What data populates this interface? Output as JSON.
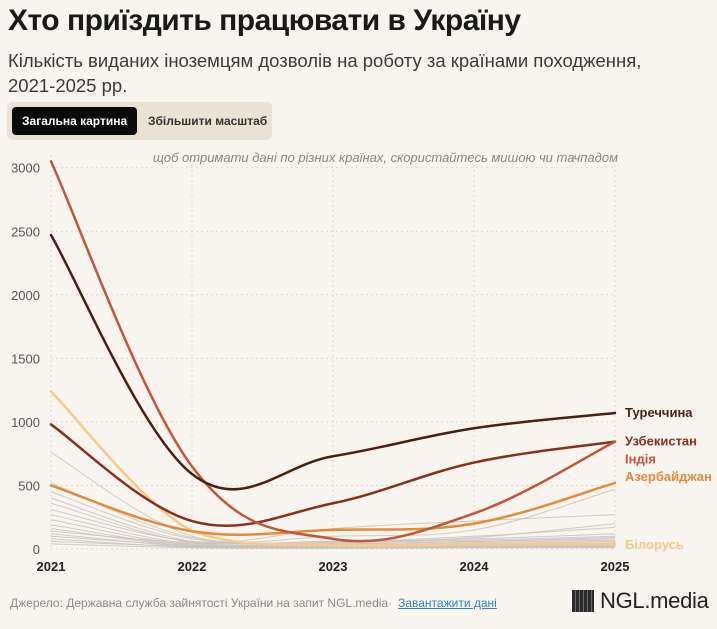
{
  "header": {
    "title": "Хто приїздить працювати в Україну",
    "subtitle": "Кількість виданих іноземцям дозволів на роботу за країнами походження, 2021-2025 рр."
  },
  "tabs": [
    {
      "label": "Загальна картина",
      "active": true
    },
    {
      "label": "Збільшити масштаб",
      "active": false
    }
  ],
  "hint": "щоб отримати дані по різних країнах, скористайтесь мишою чи тачпадом",
  "footer": {
    "source": "Джерело: Державна служба зайнятості України на запит NGL.media·",
    "download_link": "Завантажити дані",
    "logo_text": "NGL.media"
  },
  "chart_data": {
    "type": "line",
    "x": [
      2021,
      2022,
      2023,
      2024,
      2025
    ],
    "ylim": [
      0,
      3100
    ],
    "yticks": [
      0,
      500,
      1000,
      1500,
      2000,
      2500,
      3000
    ],
    "grid": true,
    "series": [
      {
        "name": "Туреччина",
        "values": [
          2470,
          590,
          730,
          950,
          1070
        ],
        "color": "#4a1f14",
        "highlight": true
      },
      {
        "name": "Узбекистан",
        "values": [
          980,
          220,
          360,
          680,
          845
        ],
        "color": "#8a2e1e",
        "highlight": true
      },
      {
        "name": "Індія",
        "values": [
          3050,
          650,
          80,
          280,
          845
        ],
        "color": "#c2553a",
        "highlight": true
      },
      {
        "name": "Азербайджан",
        "values": [
          500,
          140,
          150,
          200,
          520
        ],
        "color": "#e58a36",
        "highlight": true
      },
      {
        "name": "Білорусь",
        "values": [
          1240,
          140,
          30,
          40,
          40
        ],
        "color": "#f6c98c",
        "highlight": true
      },
      {
        "values": [
          760,
          100,
          60,
          80,
          120
        ],
        "color": "#c9c3bb"
      },
      {
        "values": [
          520,
          90,
          60,
          100,
          170
        ],
        "color": "#c9c3bb"
      },
      {
        "values": [
          450,
          80,
          50,
          90,
          200
        ],
        "color": "#c9c3bb"
      },
      {
        "values": [
          400,
          60,
          40,
          60,
          90
        ],
        "color": "#c9c3bb"
      },
      {
        "values": [
          360,
          50,
          30,
          50,
          70
        ],
        "color": "#c9c3bb"
      },
      {
        "values": [
          310,
          60,
          100,
          150,
          470
        ],
        "color": "#c9c3bb"
      },
      {
        "values": [
          270,
          40,
          50,
          70,
          100
        ],
        "color": "#c9c3bb"
      },
      {
        "values": [
          230,
          30,
          30,
          30,
          50
        ],
        "color": "#c9c3bb"
      },
      {
        "values": [
          190,
          40,
          160,
          220,
          270
        ],
        "color": "#c9c3bb"
      },
      {
        "values": [
          160,
          25,
          20,
          25,
          30
        ],
        "color": "#c9c3bb"
      },
      {
        "values": [
          140,
          50,
          40,
          60,
          80
        ],
        "color": "#c9c3bb"
      },
      {
        "values": [
          120,
          20,
          15,
          20,
          25
        ],
        "color": "#c9c3bb"
      },
      {
        "values": [
          100,
          30,
          20,
          40,
          60
        ],
        "color": "#c9c3bb"
      },
      {
        "values": [
          80,
          15,
          10,
          15,
          20
        ],
        "color": "#c9c3bb"
      },
      {
        "values": [
          60,
          20,
          10,
          10,
          15
        ],
        "color": "#c9c3bb"
      },
      {
        "values": [
          40,
          10,
          5,
          10,
          10
        ],
        "color": "#c9c3bb"
      }
    ]
  }
}
